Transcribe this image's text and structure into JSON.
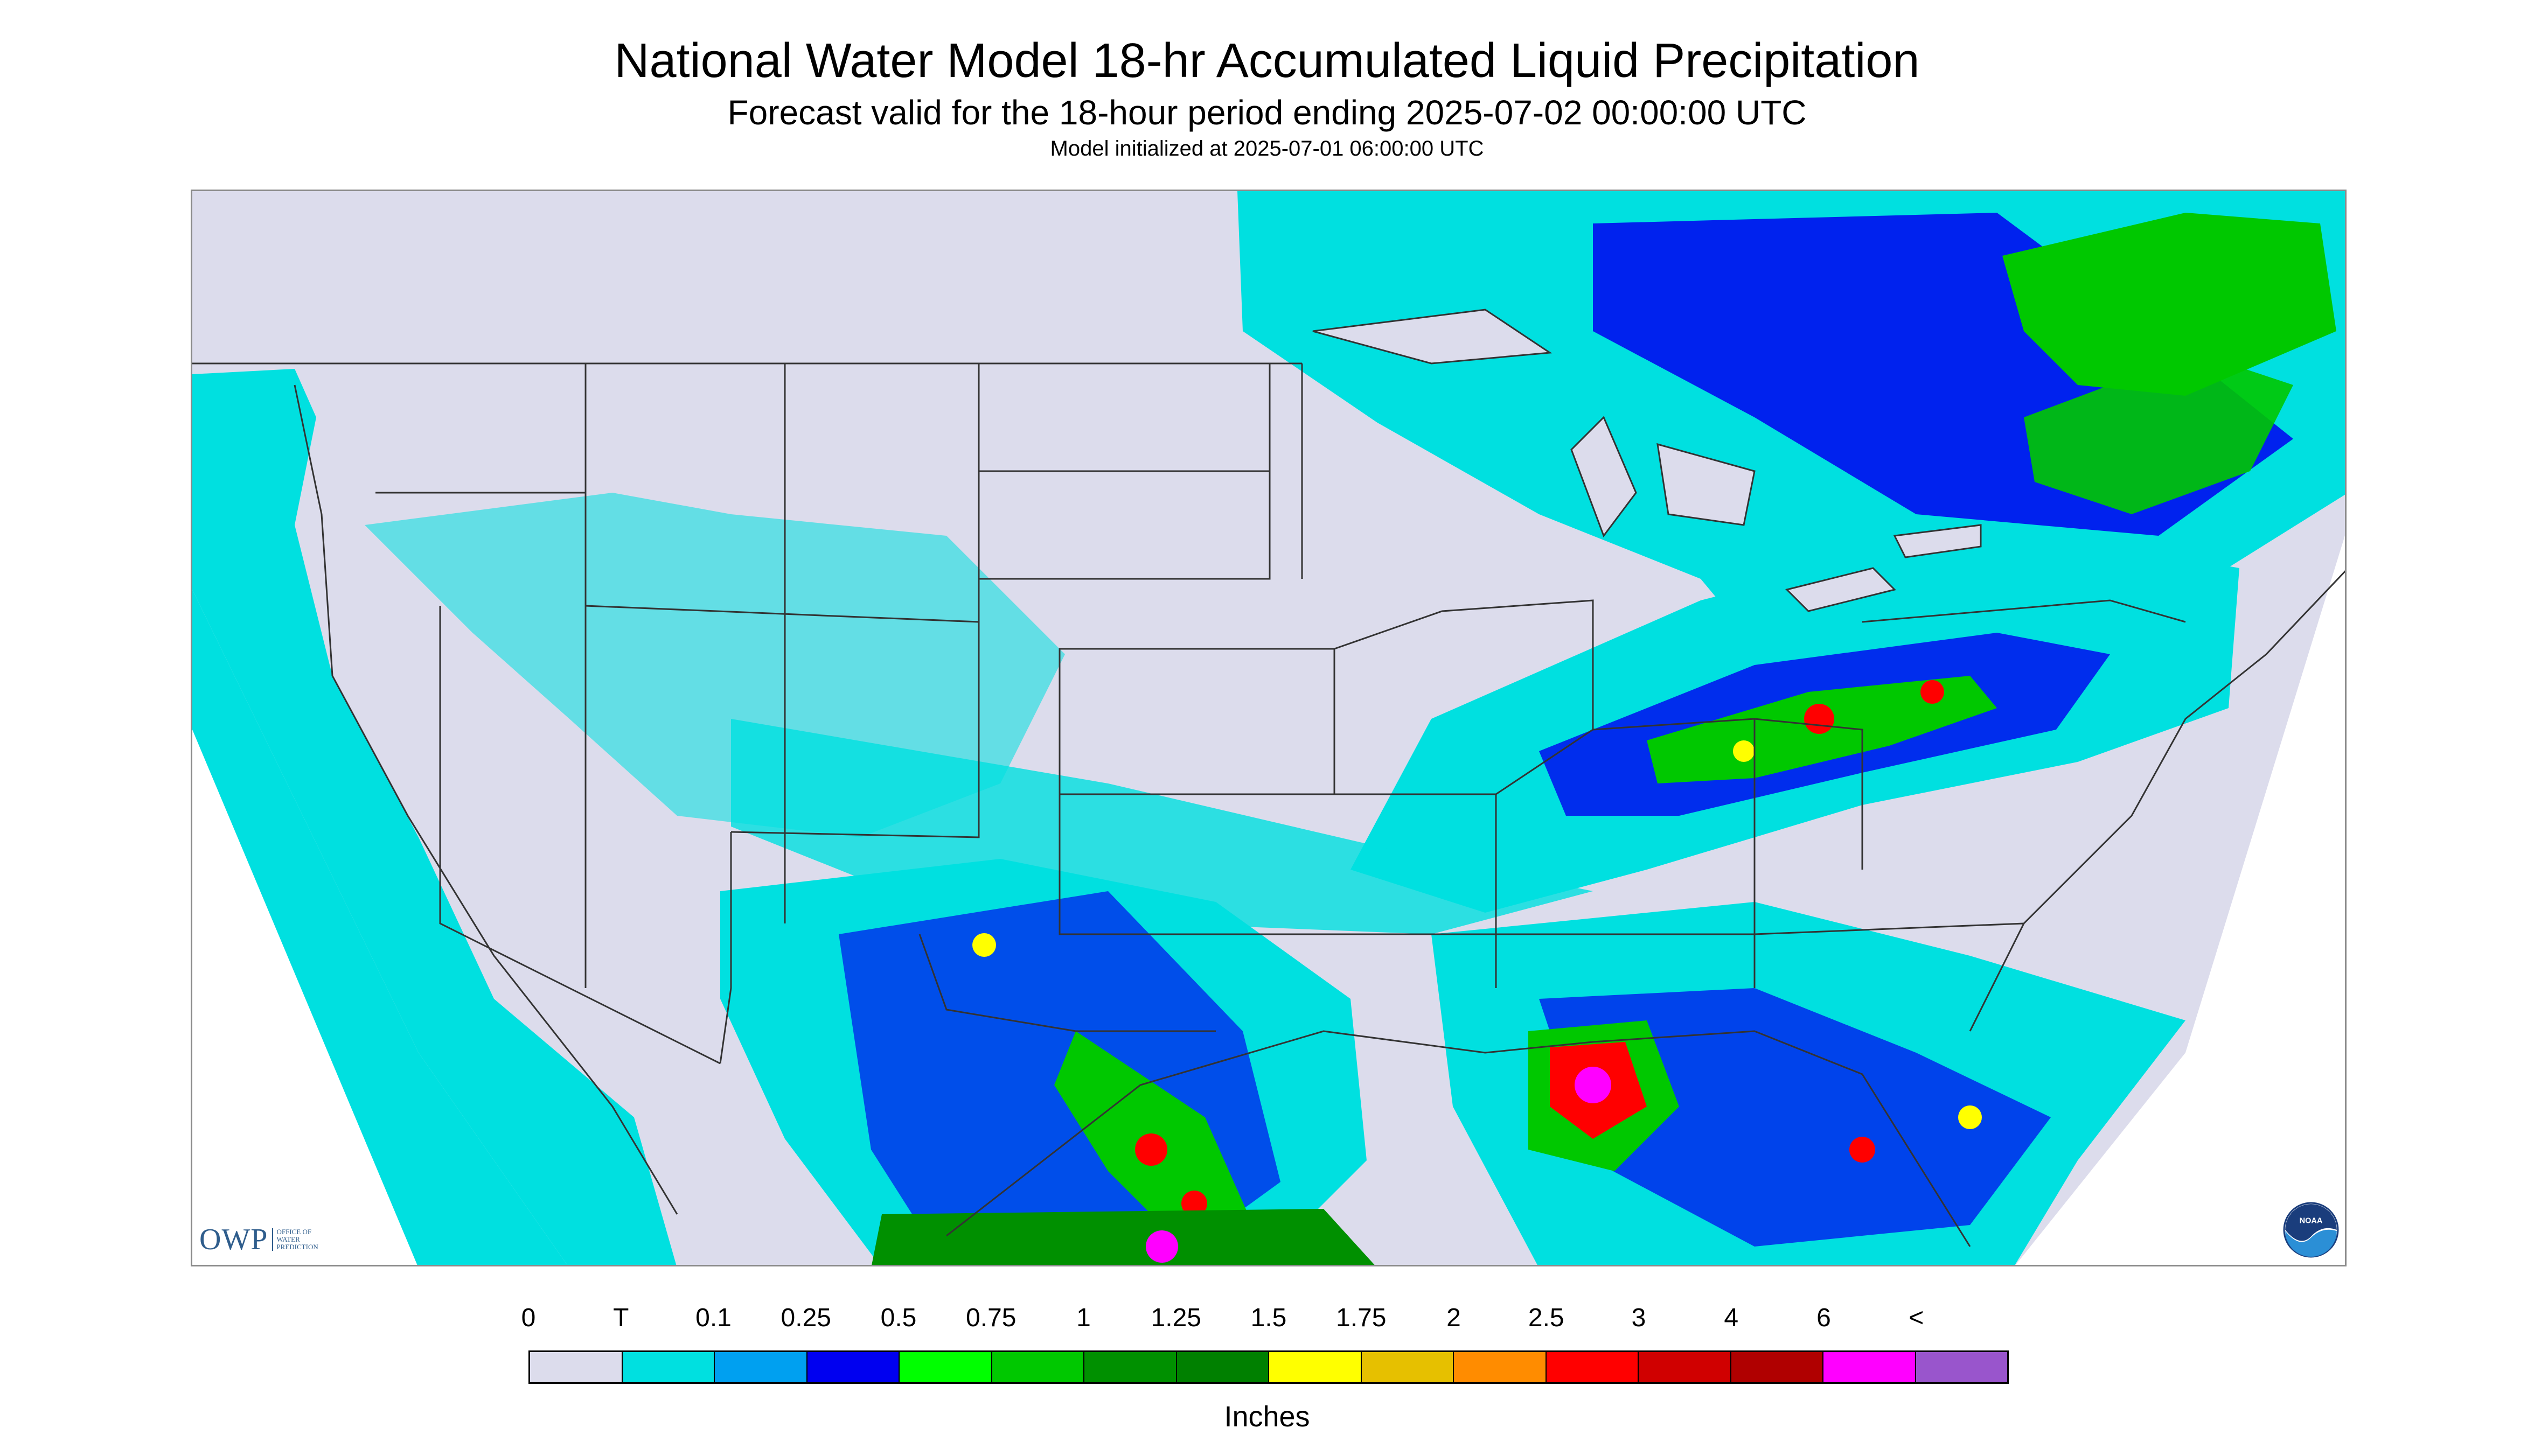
{
  "header": {
    "title": "National Water Model 18-hr Accumulated Liquid Precipitation",
    "subtitle": "Forecast valid for the 18-hour period ending 2025-07-02 00:00:00 UTC",
    "init_line": "Model initialized at 2025-07-01 06:00:00 UTC"
  },
  "logos": {
    "owp": {
      "text": "OWP",
      "subtext": "OFFICE OF WATER PREDICTION",
      "icon": "owp-logo"
    },
    "noaa": {
      "text": "NOAA",
      "icon": "noaa-logo"
    }
  },
  "legend": {
    "units": "Inches",
    "tick_labels": [
      "0",
      "T",
      "0.1",
      "0.25",
      "0.5",
      "0.75",
      "1",
      "1.25",
      "1.5",
      "1.75",
      "2",
      "2.5",
      "3",
      "4",
      "6",
      "<"
    ],
    "colors": [
      "#dcdcec",
      "#00e0e0",
      "#00a0f0",
      "#0000f0",
      "#00ff00",
      "#00c800",
      "#009000",
      "#008000",
      "#ffff00",
      "#e6c000",
      "#ff8c00",
      "#ff0000",
      "#d00000",
      "#b00000",
      "#ff00ff",
      "#9955cc"
    ]
  },
  "map": {
    "background_color": "#dcdcec",
    "outside_color": "#ffffff",
    "water_trace_color": "#00e0e0",
    "boundary_color": "#333333"
  }
}
